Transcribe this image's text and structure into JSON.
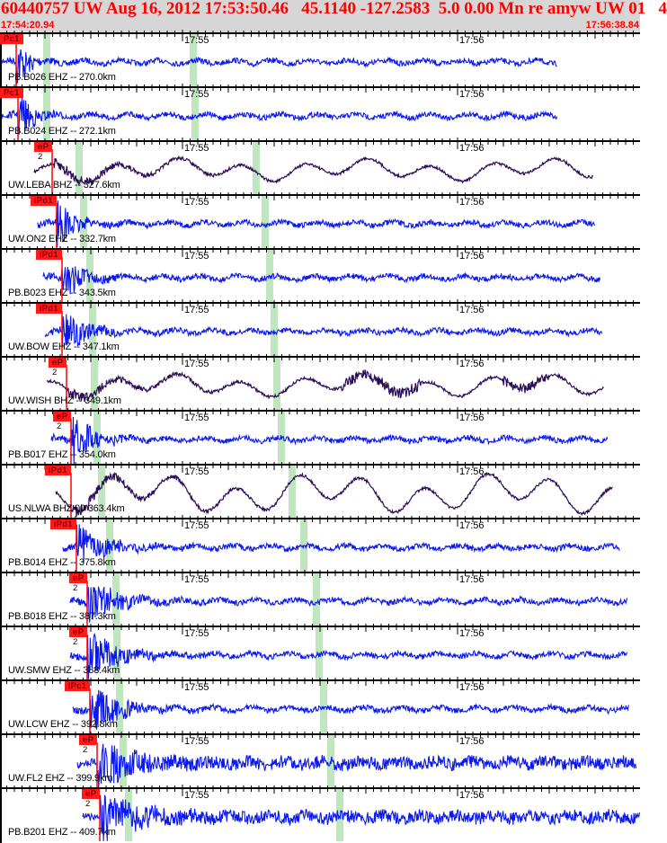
{
  "header": {
    "title": "60440757 UW Aug 16, 2012 17:53:50.46   45.1140 -127.2583  5.0 0.00 Mn re amyw UW 01   4",
    "window_start": "17:54:20.94",
    "window_end": "17:56:38.84"
  },
  "axis": {
    "minute_labels": [
      "17:55",
      "17:56"
    ]
  },
  "colors": {
    "short_period": "#0b18f0",
    "broadband": "#2a0c58",
    "pick": "#ff0000",
    "theoretical_marker": "#bfe6bf",
    "header_text": "#ff0000"
  },
  "traces": [
    {
      "label": "PB.B026 EHZ -- 270.0km",
      "pick": "Pc1",
      "type": "short_period"
    },
    {
      "label": "PB.B024 EHZ -- 272.1km",
      "pick": "Pc1",
      "type": "short_period"
    },
    {
      "label": "UW.LEBA BHZ -- 327.6km",
      "pick": "eP 2",
      "type": "broadband"
    },
    {
      "label": "UW.ON2 EHZ -- 332.7km",
      "pick": "iPd1",
      "type": "short_period"
    },
    {
      "label": "PB.B023 EHZ -- 343.5km",
      "pick": "iPd1",
      "type": "short_period"
    },
    {
      "label": "UW.BOW EHZ -- 347.1km",
      "pick": "iPd1",
      "type": "short_period"
    },
    {
      "label": "UW.WISH BHZ -- 349.1km",
      "pick": "eP 2",
      "type": "broadband"
    },
    {
      "label": "PB.B017 EHZ -- 354.0km",
      "pick": "eP 2",
      "type": "short_period"
    },
    {
      "label": "US.NLWA BHZ 00 363.4km",
      "pick": "iPd1",
      "type": "broadband"
    },
    {
      "label": "PB.B014 EHZ -- 375.8km",
      "pick": "iPd1",
      "type": "short_period"
    },
    {
      "label": "PB.B018 EHZ -- 387.3km",
      "pick": "eP 2",
      "type": "short_period"
    },
    {
      "label": "UW.SMW EHZ -- 388.4km",
      "pick": "eP 2",
      "type": "short_period"
    },
    {
      "label": "UW.LCW EHZ -- 392.8km",
      "pick": "iPc1",
      "type": "short_period"
    },
    {
      "label": "UW.FL2 EHZ -- 399.9km",
      "pick": "eP 2",
      "type": "short_period"
    },
    {
      "label": "PB.B201 EHZ -- 409.7km",
      "pick": "eP 2",
      "type": "short_period"
    }
  ]
}
